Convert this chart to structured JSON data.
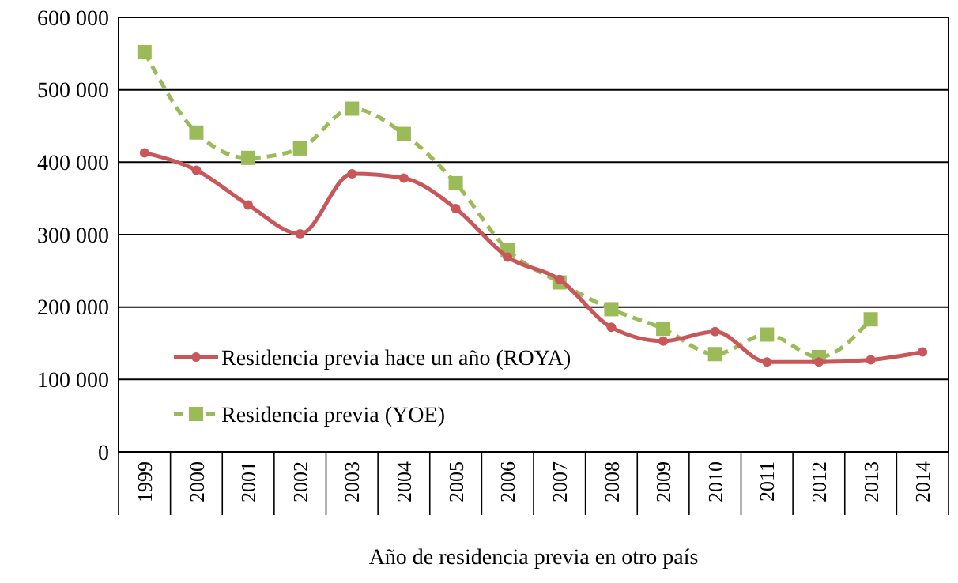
{
  "chart_data": {
    "type": "line",
    "xlabel": "Año de residencia previa en otro país",
    "categories": [
      "1999",
      "2000",
      "2001",
      "2002",
      "2003",
      "2004",
      "2005",
      "2006",
      "2007",
      "2008",
      "2009",
      "2010",
      "2011",
      "2012",
      "2013",
      "2014"
    ],
    "series": [
      {
        "name": "Residencia previa hace un año (ROYA)",
        "color": "#c9575a",
        "marker": "circle",
        "line_style": "solid",
        "values": [
          413000,
          389000,
          341000,
          301000,
          384000,
          378000,
          336000,
          269000,
          238000,
          172000,
          153000,
          166000,
          124000,
          124000,
          127000,
          138000
        ]
      },
      {
        "name": "Residencia previa (YOE)",
        "color": "#9bbb59",
        "marker": "square",
        "line_style": "dashed",
        "values": [
          552000,
          441000,
          406000,
          419000,
          474000,
          439000,
          371000,
          279000,
          234000,
          197000,
          170000,
          135000,
          162000,
          131000,
          183000,
          null
        ]
      }
    ],
    "ylim": [
      0,
      600000
    ],
    "yticks": [
      {
        "value": 0,
        "label": "0"
      },
      {
        "value": 100000,
        "label": "100 000"
      },
      {
        "value": 200000,
        "label": "200 000"
      },
      {
        "value": 300000,
        "label": "300 000"
      },
      {
        "value": 400000,
        "label": "400 000"
      },
      {
        "value": 500000,
        "label": "500 000"
      },
      {
        "value": 600000,
        "label": "600 000"
      }
    ],
    "grid": "y",
    "legend": "bottom left"
  }
}
